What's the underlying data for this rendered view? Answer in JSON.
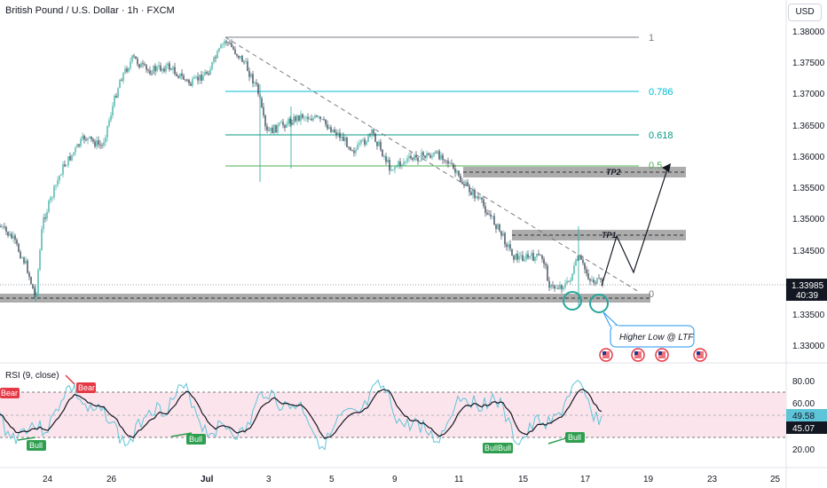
{
  "header": {
    "title": "British Pound / U.S. Dollar · 1h · FXCM",
    "currency": "USD"
  },
  "price_axis": {
    "ticks": [
      "1.38000",
      "1.37500",
      "1.37000",
      "1.36500",
      "1.36000",
      "1.35500",
      "1.35000",
      "1.34500",
      "1.34000",
      "1.33500",
      "1.33000"
    ],
    "current_price": "1.33985",
    "countdown": "40:39"
  },
  "time_axis": {
    "labels": [
      "24",
      "26",
      "Jul",
      "3",
      "5",
      "9",
      "11",
      "15",
      "17",
      "19",
      "23",
      "25"
    ]
  },
  "fib": {
    "levels": [
      {
        "label": "1",
        "color": "#787b86"
      },
      {
        "label": "0.786",
        "color": "#00bcd4"
      },
      {
        "label": "0.618",
        "color": "#089981"
      },
      {
        "label": "0.5",
        "color": "#4caf50"
      },
      {
        "label": "0",
        "color": "#787b86"
      }
    ]
  },
  "zones": {
    "tp2": "TP2",
    "tp1": "TP1"
  },
  "callout": "Higher Low @ LTF",
  "rsi": {
    "title": "RSI (9, close)",
    "ticks": [
      "80.00",
      "60.00",
      "20.00"
    ],
    "value_a": "49.58",
    "value_b": "45.07",
    "labels": {
      "bear": "Bear",
      "bull": "Bull",
      "bullbull": "BullBull"
    }
  },
  "colors": {
    "up": "#26a69a",
    "down": "#1e293b",
    "rsi_line": "#5ec5d8",
    "rsi_ma": "#131722",
    "rsi_band": "#fce4ec",
    "bull": "#2e9e4f",
    "bear": "#e53946",
    "zone": "#9e9e9e"
  }
}
